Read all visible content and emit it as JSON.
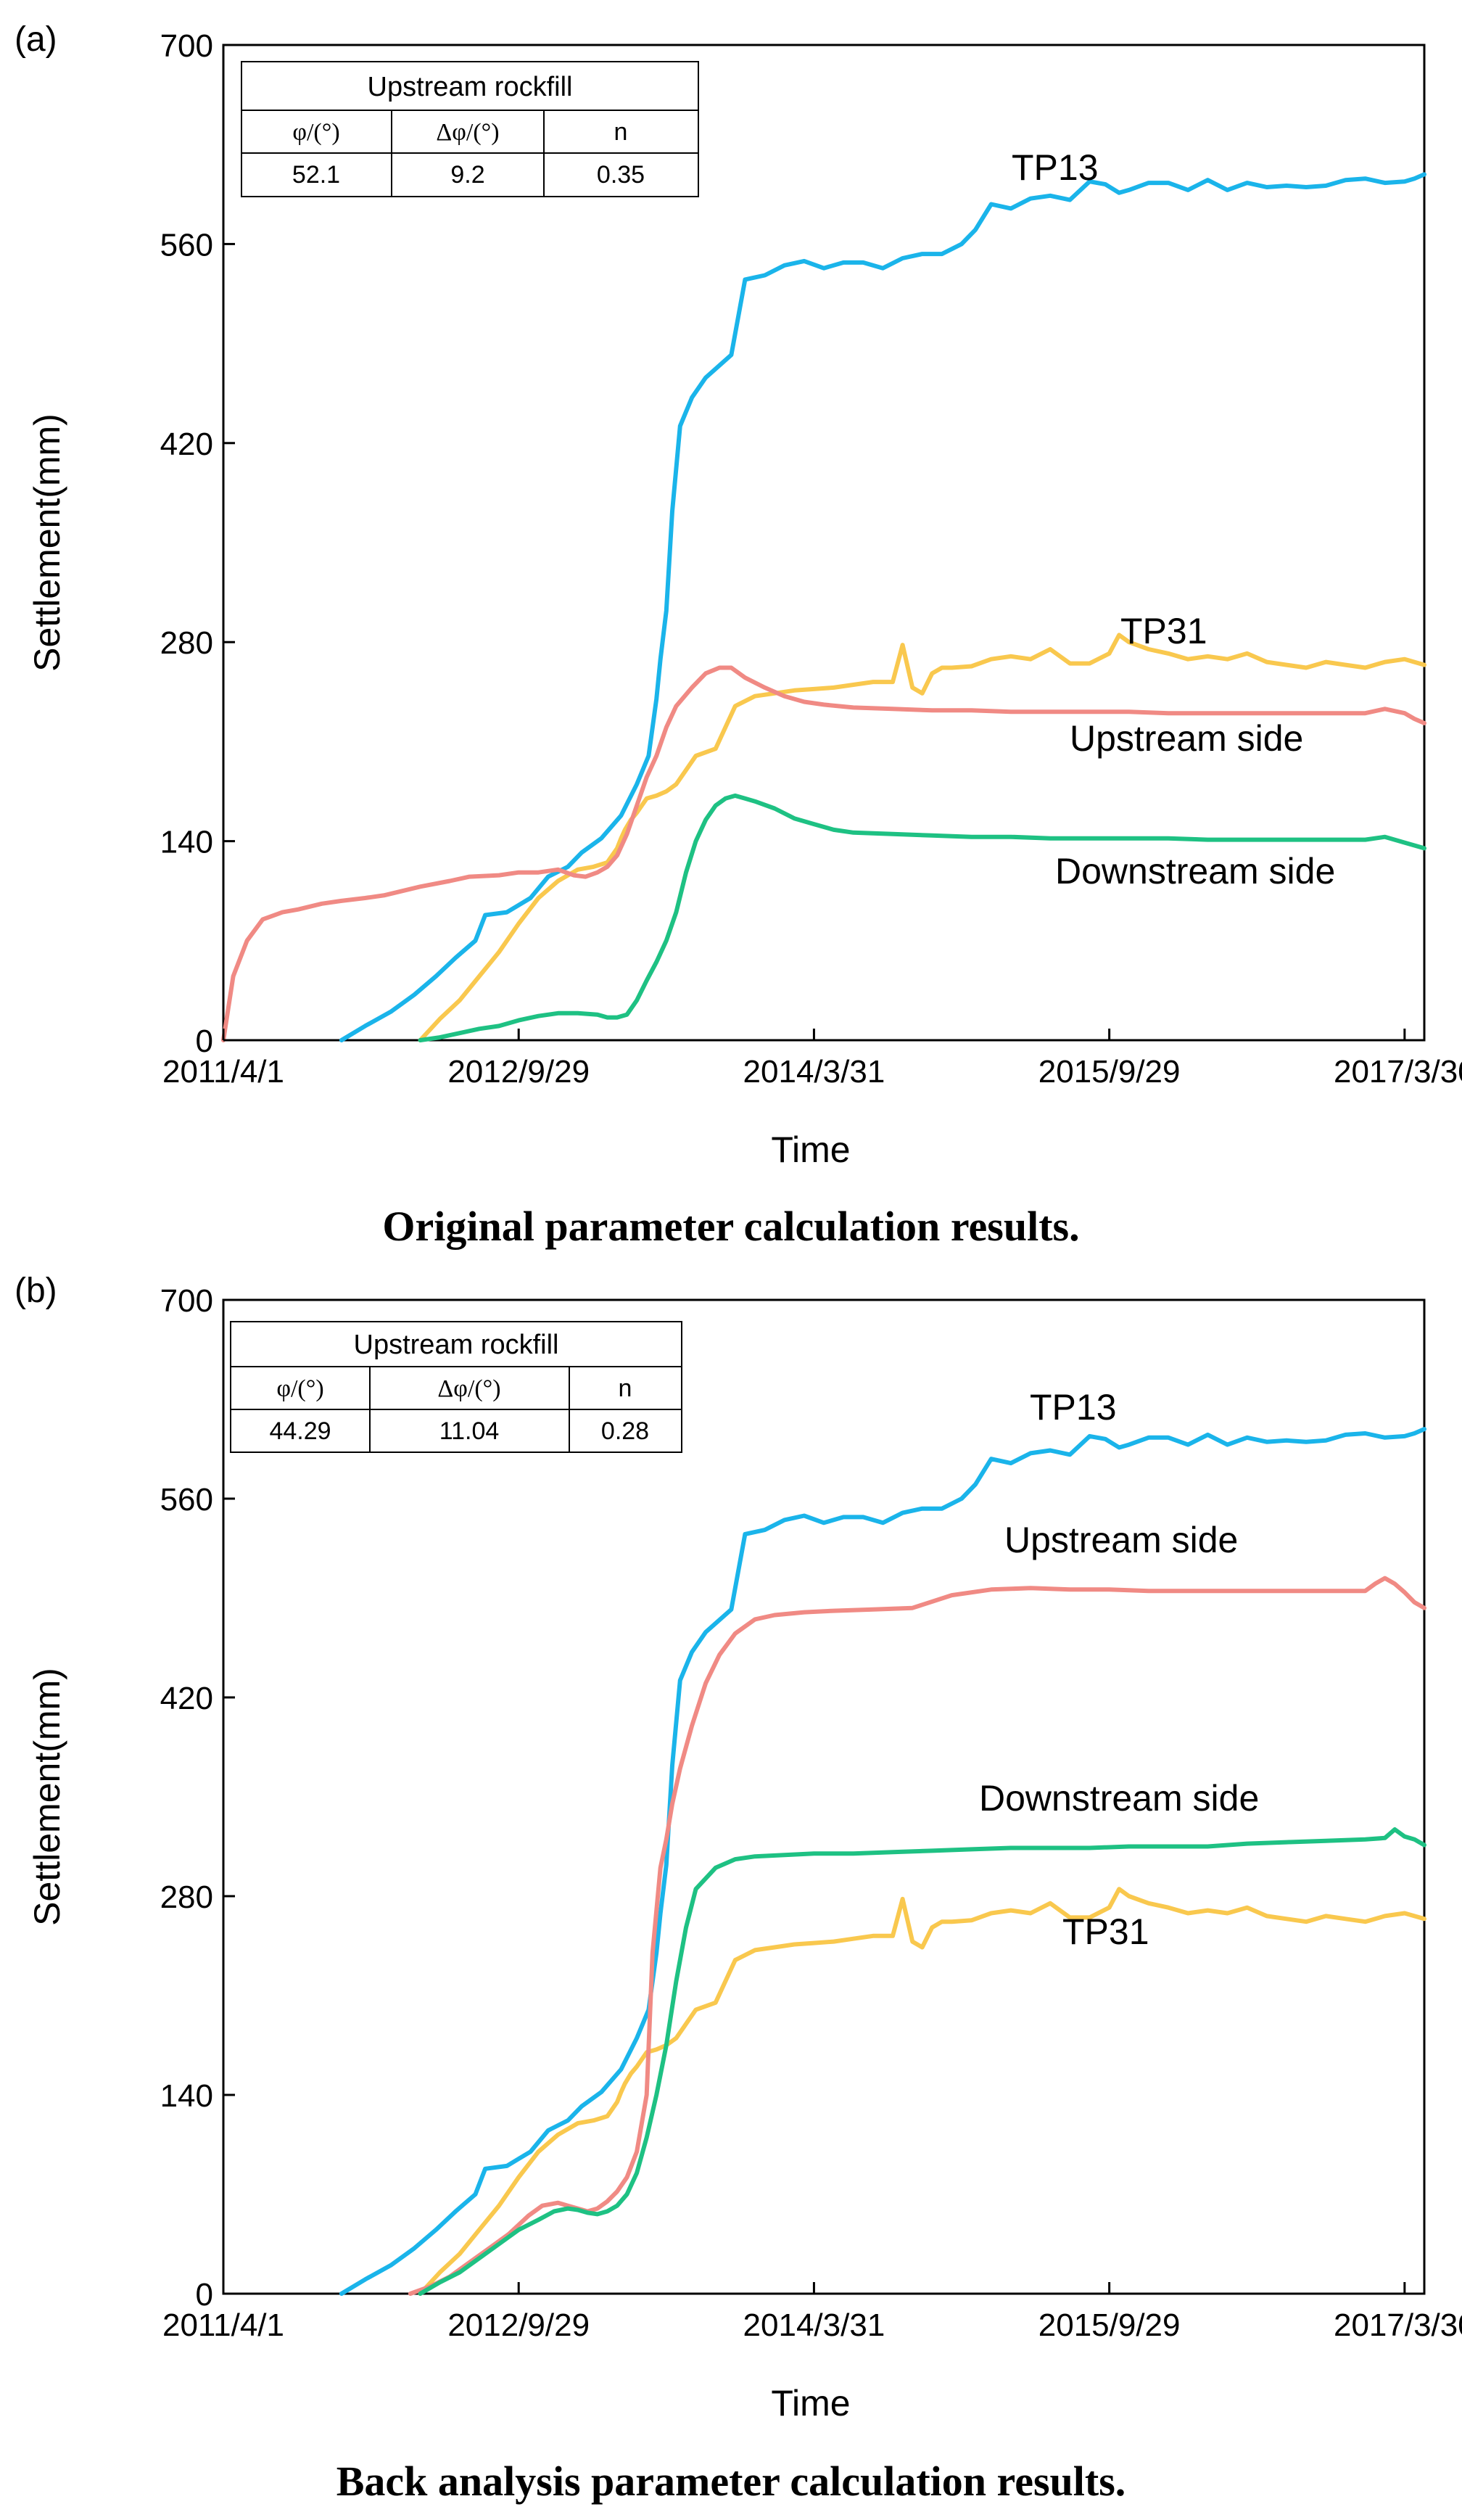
{
  "panels": [
    {
      "label": "(a)",
      "caption": "Original parameter calculation results.",
      "table": {
        "title": "Upstream rockfill",
        "headers": [
          "φ/(°)",
          "Δφ/(°)",
          "n"
        ],
        "values": [
          "52.1",
          "9.2",
          "0.35"
        ]
      }
    },
    {
      "label": "(b)",
      "caption": "Back analysis parameter calculation results.",
      "table": {
        "title": "Upstream rockfill",
        "headers": [
          "φ/(°)",
          "Δφ/(°)",
          "n"
        ],
        "values": [
          "44.29",
          "11.04",
          "0.28"
        ]
      }
    }
  ],
  "chart_data": [
    {
      "type": "line",
      "title": "Original parameter calculation results.",
      "xlabel": "Time",
      "ylabel": "Settlement(mm)",
      "xlim": [
        0,
        6.1
      ],
      "ylim": [
        0,
        700
      ],
      "xticks": [
        0,
        1.5,
        3,
        4.5,
        6
      ],
      "xticklabels": [
        "2011/4/1",
        "2012/9/29",
        "2014/3/31",
        "2015/9/29",
        "2017/3/30"
      ],
      "yticks": [
        0,
        140,
        280,
        420,
        560,
        700
      ],
      "series": [
        {
          "name": "TP13",
          "color": "#1ab4ea",
          "x": [
            0.6,
            0.72,
            0.85,
            0.97,
            1.08,
            1.18,
            1.28,
            1.33,
            1.44,
            1.5,
            1.56,
            1.65,
            1.75,
            1.82,
            1.92,
            2.02,
            2.1,
            2.16,
            2.2,
            2.22,
            2.25,
            2.28,
            2.32,
            2.38,
            2.45,
            2.58,
            2.65,
            2.75,
            2.85,
            2.95,
            3.05,
            3.15,
            3.25,
            3.35,
            3.45,
            3.55,
            3.65,
            3.75,
            3.82,
            3.9,
            4.0,
            4.1,
            4.2,
            4.3,
            4.4,
            4.48,
            4.55,
            4.6,
            4.7,
            4.8,
            4.9,
            5.0,
            5.1,
            5.2,
            5.3,
            5.4,
            5.5,
            5.6,
            5.7,
            5.8,
            5.9,
            6.0,
            6.05,
            6.1
          ],
          "y": [
            0,
            10,
            20,
            32,
            45,
            58,
            70,
            88,
            90,
            95,
            100,
            115,
            122,
            132,
            142,
            158,
            180,
            200,
            240,
            268,
            302,
            372,
            432,
            452,
            466,
            482,
            535,
            538,
            545,
            548,
            543,
            547,
            547,
            543,
            550,
            553,
            553,
            560,
            570,
            588,
            585,
            592,
            594,
            591,
            604,
            602,
            596,
            598,
            603,
            603,
            598,
            605,
            598,
            603,
            600,
            601,
            600,
            601,
            605,
            606,
            603,
            604,
            606,
            609
          ]
        },
        {
          "name": "TP31",
          "color": "#f9c84e",
          "x": [
            1.0,
            1.1,
            1.2,
            1.3,
            1.4,
            1.5,
            1.6,
            1.7,
            1.8,
            1.88,
            1.95,
            2.0,
            2.02,
            2.04,
            2.07,
            2.1,
            2.15,
            2.2,
            2.25,
            2.3,
            2.35,
            2.4,
            2.5,
            2.6,
            2.7,
            2.8,
            2.9,
            3.0,
            3.1,
            3.2,
            3.3,
            3.4,
            3.45,
            3.5,
            3.55,
            3.6,
            3.65,
            3.7,
            3.8,
            3.9,
            4.0,
            4.1,
            4.2,
            4.3,
            4.4,
            4.5,
            4.55,
            4.6,
            4.7,
            4.8,
            4.9,
            5.0,
            5.1,
            5.2,
            5.3,
            5.4,
            5.5,
            5.6,
            5.7,
            5.8,
            5.9,
            6.0,
            6.1
          ],
          "y": [
            0,
            15,
            28,
            45,
            62,
            82,
            100,
            112,
            120,
            122,
            125,
            135,
            142,
            148,
            155,
            160,
            170,
            172,
            175,
            180,
            190,
            200,
            205,
            235,
            242,
            244,
            246,
            247,
            248,
            250,
            252,
            252,
            278,
            248,
            244,
            258,
            262,
            262,
            263,
            268,
            270,
            268,
            275,
            265,
            265,
            272,
            285,
            280,
            275,
            272,
            268,
            270,
            268,
            272,
            266,
            264,
            262,
            266,
            264,
            262,
            266,
            268,
            264
          ]
        },
        {
          "name": "Upstream side",
          "color": "#f08a84",
          "x": [
            0.0,
            0.05,
            0.12,
            0.2,
            0.3,
            0.38,
            0.5,
            0.6,
            0.72,
            0.82,
            1.0,
            1.15,
            1.25,
            1.4,
            1.5,
            1.6,
            1.7,
            1.78,
            1.84,
            1.9,
            1.95,
            2.0,
            2.05,
            2.1,
            2.15,
            2.2,
            2.25,
            2.3,
            2.38,
            2.45,
            2.52,
            2.58,
            2.65,
            2.75,
            2.85,
            2.95,
            3.05,
            3.2,
            3.4,
            3.6,
            3.8,
            4.0,
            4.2,
            4.4,
            4.6,
            4.8,
            5.0,
            5.2,
            5.4,
            5.6,
            5.8,
            5.9,
            6.0,
            6.05,
            6.1
          ],
          "y": [
            0,
            45,
            70,
            85,
            90,
            92,
            96,
            98,
            100,
            102,
            108,
            112,
            115,
            116,
            118,
            118,
            120,
            116,
            115,
            118,
            122,
            130,
            145,
            165,
            185,
            200,
            220,
            235,
            248,
            258,
            262,
            262,
            255,
            248,
            242,
            238,
            236,
            234,
            233,
            232,
            232,
            231,
            231,
            231,
            231,
            230,
            230,
            230,
            230,
            230,
            230,
            233,
            230,
            226,
            223
          ]
        },
        {
          "name": "Downstream side",
          "color": "#1ec183",
          "x": [
            1.0,
            1.1,
            1.2,
            1.3,
            1.4,
            1.5,
            1.6,
            1.7,
            1.8,
            1.9,
            1.95,
            2.0,
            2.05,
            2.1,
            2.15,
            2.2,
            2.25,
            2.3,
            2.35,
            2.4,
            2.45,
            2.5,
            2.55,
            2.6,
            2.65,
            2.7,
            2.8,
            2.9,
            3.0,
            3.1,
            3.2,
            3.4,
            3.6,
            3.8,
            4.0,
            4.2,
            4.4,
            4.6,
            4.8,
            5.0,
            5.2,
            5.4,
            5.6,
            5.8,
            5.9,
            6.0,
            6.05,
            6.1
          ],
          "y": [
            0,
            2,
            5,
            8,
            10,
            14,
            17,
            19,
            19,
            18,
            16,
            16,
            18,
            28,
            42,
            55,
            70,
            90,
            118,
            140,
            155,
            165,
            170,
            172,
            170,
            168,
            163,
            156,
            152,
            148,
            146,
            145,
            144,
            143,
            143,
            142,
            142,
            142,
            142,
            141,
            141,
            141,
            141,
            141,
            143,
            139,
            137,
            135
          ]
        }
      ],
      "annotations": [
        "TP13",
        "TP31",
        "Upstream side",
        "Downstream side"
      ]
    },
    {
      "type": "line",
      "title": "Back analysis parameter calculation results.",
      "xlabel": "Time",
      "ylabel": "Settlement(mm)",
      "xlim": [
        0,
        6.1
      ],
      "ylim": [
        0,
        700
      ],
      "xticks": [
        0,
        1.5,
        3,
        4.5,
        6
      ],
      "xticklabels": [
        "2011/4/1",
        "2012/9/29",
        "2014/3/31",
        "2015/9/29",
        "2017/3/30"
      ],
      "yticks": [
        0,
        140,
        280,
        420,
        560,
        700
      ],
      "series": [
        {
          "name": "TP13",
          "color": "#1ab4ea",
          "x": [
            0.6,
            0.72,
            0.85,
            0.97,
            1.08,
            1.18,
            1.28,
            1.33,
            1.44,
            1.5,
            1.56,
            1.65,
            1.75,
            1.82,
            1.92,
            2.02,
            2.1,
            2.16,
            2.2,
            2.22,
            2.25,
            2.28,
            2.32,
            2.38,
            2.45,
            2.58,
            2.65,
            2.75,
            2.85,
            2.95,
            3.05,
            3.15,
            3.25,
            3.35,
            3.45,
            3.55,
            3.65,
            3.75,
            3.82,
            3.9,
            4.0,
            4.1,
            4.2,
            4.3,
            4.4,
            4.48,
            4.55,
            4.6,
            4.7,
            4.8,
            4.9,
            5.0,
            5.1,
            5.2,
            5.3,
            5.4,
            5.5,
            5.6,
            5.7,
            5.8,
            5.9,
            6.0,
            6.05,
            6.1
          ],
          "y": [
            0,
            10,
            20,
            32,
            45,
            58,
            70,
            88,
            90,
            95,
            100,
            115,
            122,
            132,
            142,
            158,
            180,
            200,
            240,
            268,
            302,
            372,
            432,
            452,
            466,
            482,
            535,
            538,
            545,
            548,
            543,
            547,
            547,
            543,
            550,
            553,
            553,
            560,
            570,
            588,
            585,
            592,
            594,
            591,
            604,
            602,
            596,
            598,
            603,
            603,
            598,
            605,
            598,
            603,
            600,
            601,
            600,
            601,
            605,
            606,
            603,
            604,
            606,
            609
          ]
        },
        {
          "name": "TP31",
          "color": "#f9c84e",
          "x": [
            1.0,
            1.1,
            1.2,
            1.3,
            1.4,
            1.5,
            1.6,
            1.7,
            1.8,
            1.88,
            1.95,
            2.0,
            2.02,
            2.04,
            2.07,
            2.1,
            2.15,
            2.2,
            2.25,
            2.3,
            2.35,
            2.4,
            2.5,
            2.6,
            2.7,
            2.8,
            2.9,
            3.0,
            3.1,
            3.2,
            3.3,
            3.4,
            3.45,
            3.5,
            3.55,
            3.6,
            3.65,
            3.7,
            3.8,
            3.9,
            4.0,
            4.1,
            4.2,
            4.3,
            4.4,
            4.5,
            4.55,
            4.6,
            4.7,
            4.8,
            4.9,
            5.0,
            5.1,
            5.2,
            5.3,
            5.4,
            5.5,
            5.6,
            5.7,
            5.8,
            5.9,
            6.0,
            6.1
          ],
          "y": [
            0,
            15,
            28,
            45,
            62,
            82,
            100,
            112,
            120,
            122,
            125,
            135,
            142,
            148,
            155,
            160,
            170,
            172,
            175,
            180,
            190,
            200,
            205,
            235,
            242,
            244,
            246,
            247,
            248,
            250,
            252,
            252,
            278,
            248,
            244,
            258,
            262,
            262,
            263,
            268,
            270,
            268,
            275,
            265,
            265,
            272,
            285,
            280,
            275,
            272,
            268,
            270,
            268,
            272,
            266,
            264,
            262,
            266,
            264,
            262,
            266,
            268,
            264
          ]
        },
        {
          "name": "Upstream side",
          "color": "#f08a84",
          "x": [
            0.95,
            1.05,
            1.15,
            1.25,
            1.35,
            1.45,
            1.55,
            1.62,
            1.7,
            1.75,
            1.8,
            1.85,
            1.9,
            1.95,
            2.0,
            2.05,
            2.1,
            2.15,
            2.18,
            2.22,
            2.25,
            2.28,
            2.32,
            2.38,
            2.45,
            2.52,
            2.6,
            2.7,
            2.8,
            2.95,
            3.1,
            3.3,
            3.5,
            3.7,
            3.9,
            4.1,
            4.3,
            4.5,
            4.7,
            4.9,
            5.1,
            5.3,
            5.5,
            5.7,
            5.8,
            5.85,
            5.9,
            5.95,
            6.0,
            6.05,
            6.1
          ],
          "y": [
            0,
            5,
            12,
            22,
            32,
            42,
            55,
            62,
            64,
            62,
            60,
            58,
            60,
            65,
            72,
            82,
            100,
            140,
            240,
            300,
            320,
            345,
            370,
            400,
            430,
            450,
            465,
            475,
            478,
            480,
            481,
            482,
            483,
            492,
            496,
            497,
            496,
            496,
            495,
            495,
            495,
            495,
            495,
            495,
            495,
            500,
            504,
            500,
            494,
            487,
            483
          ]
        },
        {
          "name": "Downstream side",
          "color": "#1ec183",
          "x": [
            1.0,
            1.1,
            1.2,
            1.3,
            1.4,
            1.5,
            1.6,
            1.68,
            1.75,
            1.8,
            1.85,
            1.9,
            1.95,
            2.0,
            2.05,
            2.1,
            2.15,
            2.2,
            2.25,
            2.3,
            2.35,
            2.4,
            2.5,
            2.6,
            2.7,
            2.85,
            3.0,
            3.2,
            3.4,
            3.6,
            3.8,
            4.0,
            4.2,
            4.4,
            4.6,
            4.8,
            5.0,
            5.2,
            5.4,
            5.6,
            5.8,
            5.9,
            5.95,
            6.0,
            6.05,
            6.1
          ],
          "y": [
            0,
            8,
            15,
            25,
            35,
            45,
            52,
            58,
            60,
            59,
            57,
            56,
            58,
            62,
            70,
            85,
            110,
            140,
            175,
            220,
            258,
            285,
            300,
            306,
            308,
            309,
            310,
            310,
            311,
            312,
            313,
            314,
            314,
            314,
            315,
            315,
            315,
            317,
            318,
            319,
            320,
            321,
            327,
            322,
            320,
            316
          ]
        }
      ],
      "annotations": [
        "TP13",
        "Upstream side",
        "Downstream side",
        "TP31"
      ]
    }
  ]
}
